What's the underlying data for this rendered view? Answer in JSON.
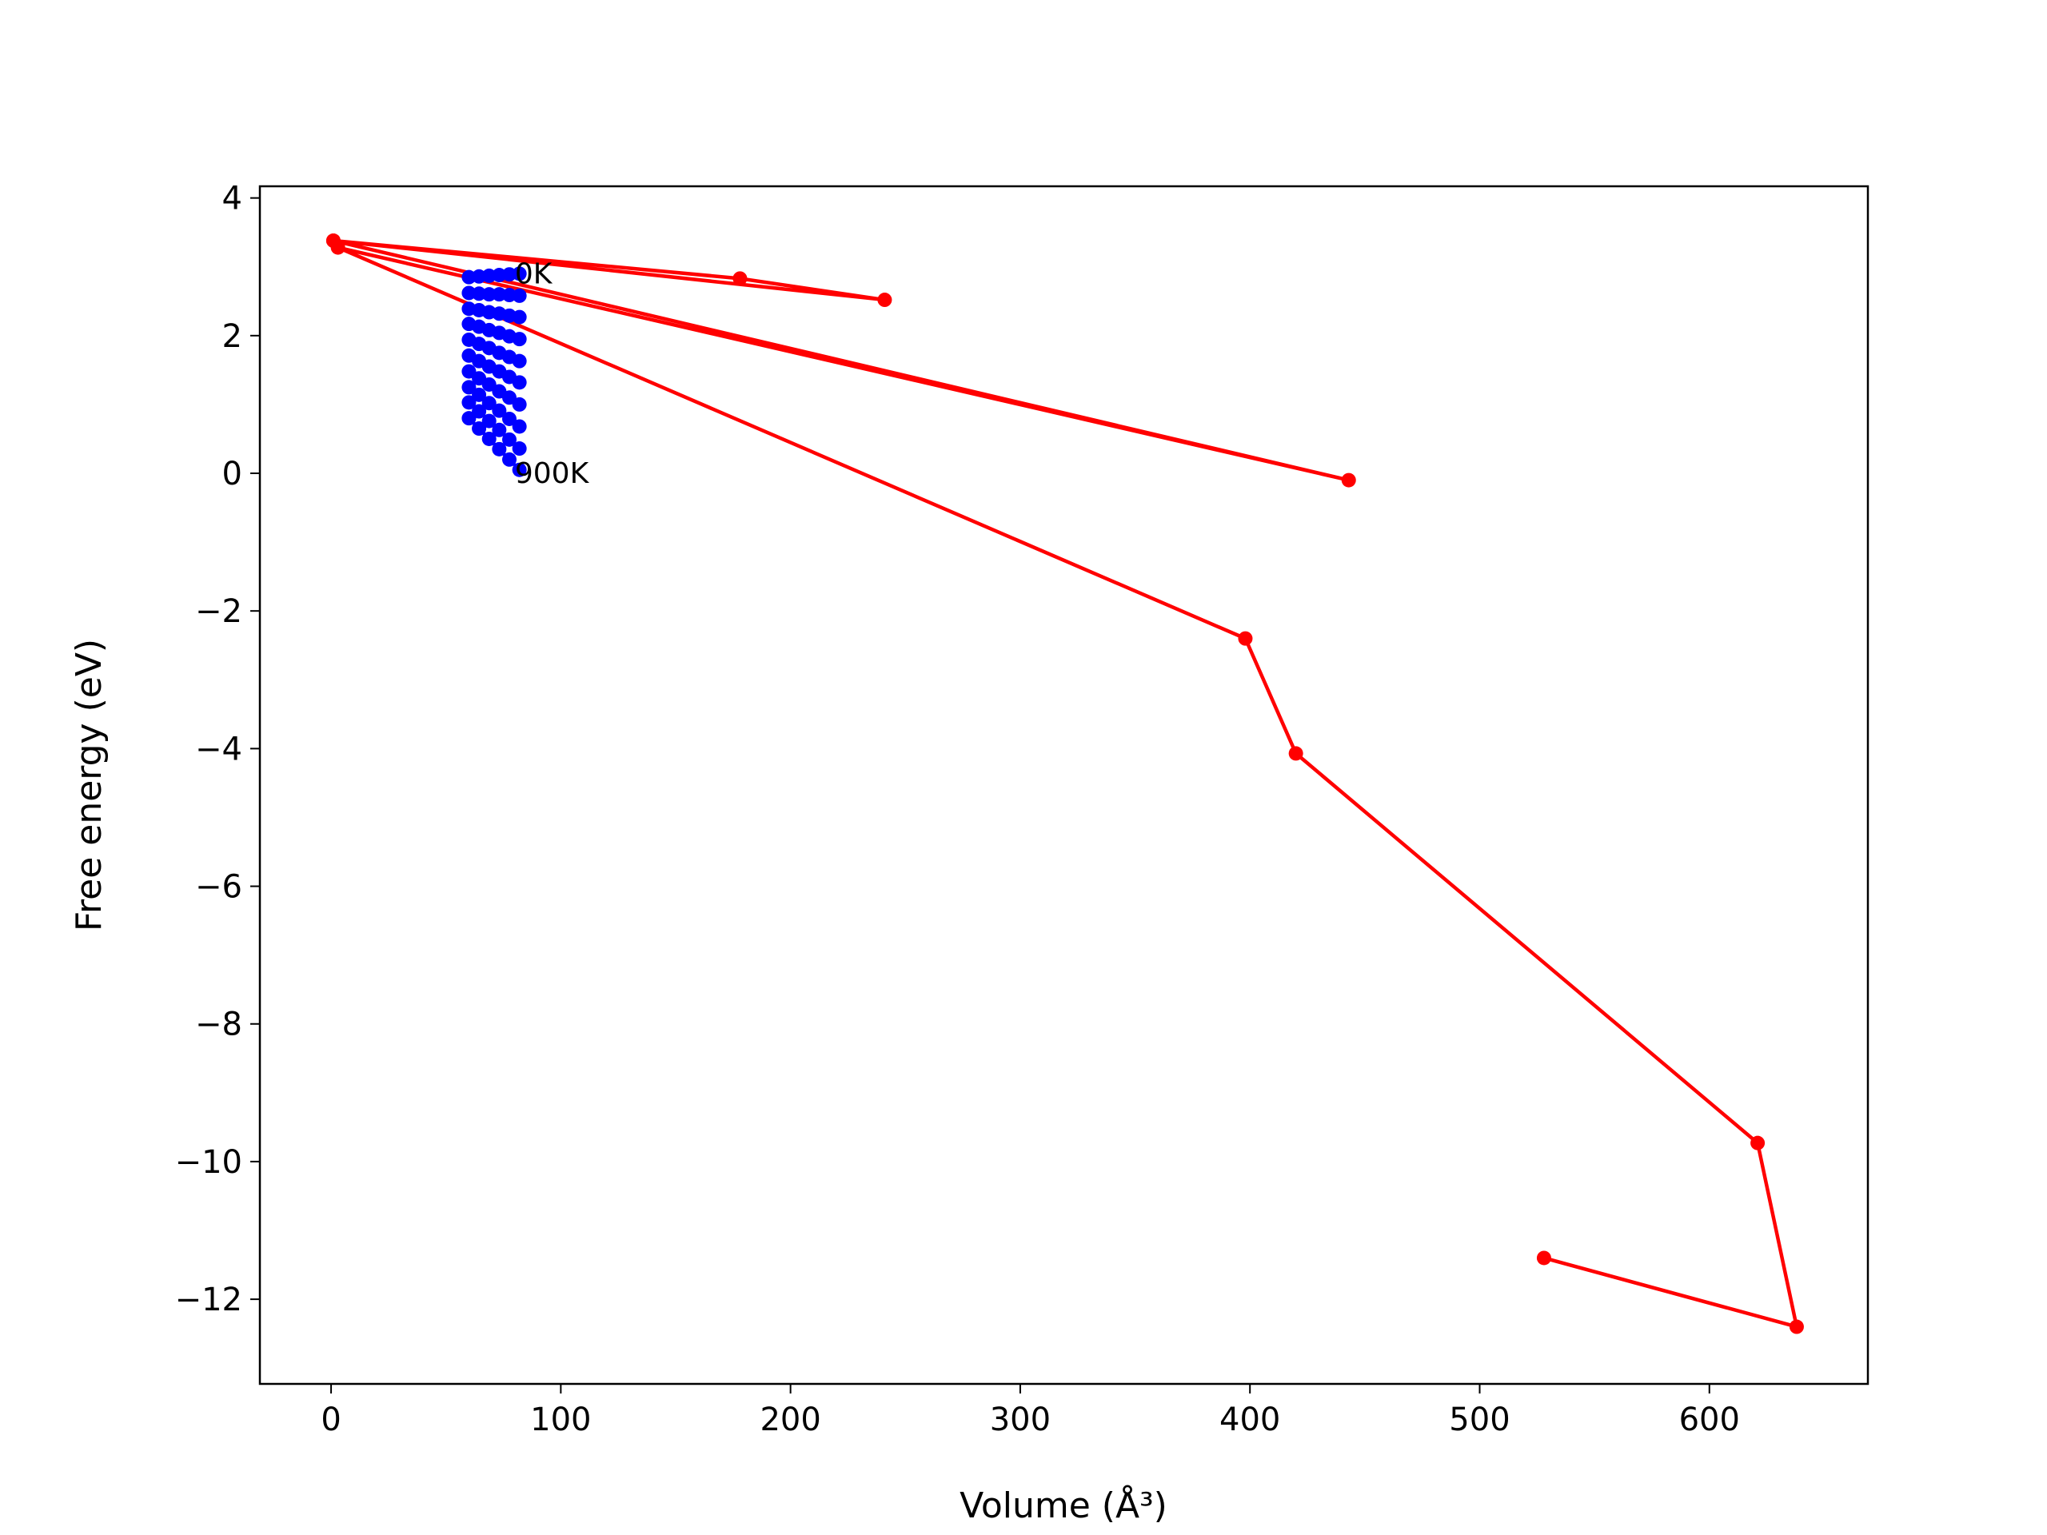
{
  "chart_data": {
    "type": "line",
    "x_label": "Volume (Å³)",
    "y_label": "Free energy (eV)",
    "xlim": [
      -31,
      669
    ],
    "ylim": [
      -13.23,
      4.17
    ],
    "xticks": [
      0,
      100,
      200,
      300,
      400,
      500,
      600
    ],
    "yticks": [
      {
        "value": -12,
        "label": "−12"
      },
      {
        "value": -10,
        "label": "−10"
      },
      {
        "value": -8,
        "label": "−8"
      },
      {
        "value": -6,
        "label": "−6"
      },
      {
        "value": -4,
        "label": "−4"
      },
      {
        "value": -2,
        "label": "−2"
      },
      0,
      2,
      4
    ],
    "grid": false,
    "series": [
      {
        "color": "#ff0000",
        "x": [
          1,
          178,
          241,
          1,
          443,
          3,
          398,
          420,
          621,
          638,
          528
        ],
        "values": [
          3.38,
          2.83,
          2.52,
          3.38,
          -0.1,
          3.28,
          -2.4,
          -4.07,
          -9.73,
          -12.4,
          -11.4
        ]
      },
      {
        "color": "#0000ff",
        "x": [
          60,
          64.4,
          68.8,
          73.2,
          77.6,
          82
        ],
        "values": [
          2.85,
          2.86,
          2.87,
          2.88,
          2.89,
          2.9
        ]
      },
      {
        "color": "#0000ff",
        "x": [
          60,
          64.4,
          68.8,
          73.2,
          77.6,
          82
        ],
        "values": [
          2.62,
          2.61,
          2.6,
          2.6,
          2.59,
          2.58
        ]
      },
      {
        "color": "#0000ff",
        "x": [
          60,
          64.4,
          68.8,
          73.2,
          77.6,
          82
        ],
        "values": [
          2.39,
          2.37,
          2.34,
          2.32,
          2.29,
          2.27
        ]
      },
      {
        "color": "#0000ff",
        "x": [
          60,
          64.4,
          68.8,
          73.2,
          77.6,
          82
        ],
        "values": [
          2.17,
          2.13,
          2.08,
          2.04,
          1.99,
          1.95
        ]
      },
      {
        "color": "#0000ff",
        "x": [
          60,
          64.4,
          68.8,
          73.2,
          77.6,
          82
        ],
        "values": [
          1.94,
          1.88,
          1.82,
          1.75,
          1.69,
          1.63
        ]
      },
      {
        "color": "#0000ff",
        "x": [
          60,
          64.4,
          68.8,
          73.2,
          77.6,
          82
        ],
        "values": [
          1.71,
          1.63,
          1.55,
          1.48,
          1.4,
          1.32
        ]
      },
      {
        "color": "#0000ff",
        "x": [
          60,
          64.4,
          68.8,
          73.2,
          77.6,
          82
        ],
        "values": [
          1.48,
          1.38,
          1.29,
          1.19,
          1.1,
          1.0
        ]
      },
      {
        "color": "#0000ff",
        "x": [
          60,
          64.4,
          68.8,
          73.2,
          77.6,
          82
        ],
        "values": [
          1.25,
          1.14,
          1.02,
          0.91,
          0.79,
          0.68
        ]
      },
      {
        "color": "#0000ff",
        "x": [
          60,
          64.4,
          68.8,
          73.2,
          77.6,
          82
        ],
        "values": [
          1.03,
          0.9,
          0.76,
          0.63,
          0.49,
          0.36
        ]
      },
      {
        "color": "#0000ff",
        "x": [
          60,
          64.4,
          68.8,
          73.2,
          77.6,
          82
        ],
        "values": [
          0.8,
          0.65,
          0.5,
          0.35,
          0.2,
          0.05
        ]
      }
    ],
    "annotations": [
      {
        "text": "0K",
        "x": 80,
        "y": 2.9
      },
      {
        "text": "900K",
        "x": 80,
        "y": 0
      }
    ]
  }
}
